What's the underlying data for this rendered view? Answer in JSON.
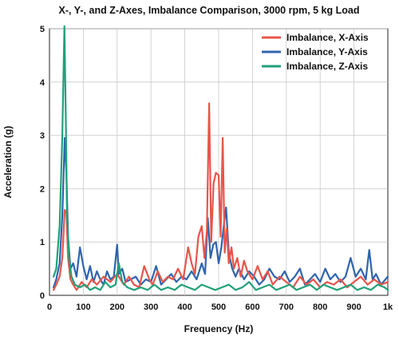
{
  "chart_data": {
    "type": "line",
    "title": "X-, Y-, and Z-Axes, Imbalance Comparison, 3000 rpm, 5 kg Load",
    "xlabel": "Frequency (Hz)",
    "ylabel": "Acceleration (g)",
    "xlim": [
      0,
      1000
    ],
    "ylim": [
      0,
      5
    ],
    "xticks": [
      0,
      100,
      200,
      300,
      400,
      500,
      600,
      700,
      800,
      900,
      1000
    ],
    "xtick_labels": [
      "0",
      "100",
      "200",
      "300",
      "400",
      "500",
      "600",
      "700",
      "800",
      "900",
      "1k"
    ],
    "yticks": [
      0,
      1,
      2,
      3,
      4,
      5
    ],
    "ytick_labels": [
      "0",
      "1",
      "2",
      "3",
      "4",
      "5"
    ],
    "grid": true,
    "legend_position": "top-right",
    "series": [
      {
        "name": "Imbalance, X-Axis",
        "color": "#e8554a",
        "x": [
          12,
          20,
          30,
          38,
          45,
          50,
          55,
          62,
          70,
          80,
          95,
          110,
          125,
          140,
          160,
          180,
          200,
          210,
          220,
          235,
          250,
          265,
          280,
          295,
          305,
          320,
          335,
          350,
          365,
          380,
          395,
          410,
          420,
          430,
          440,
          450,
          458,
          465,
          472,
          478,
          485,
          492,
          500,
          506,
          512,
          518,
          524,
          530,
          538,
          545,
          555,
          565,
          575,
          585,
          600,
          615,
          630,
          645,
          660,
          680,
          700,
          720,
          740,
          760,
          780,
          800,
          820,
          840,
          860,
          880,
          900,
          920,
          940,
          960,
          980,
          1000
        ],
        "y": [
          0.1,
          0.2,
          0.35,
          0.7,
          1.6,
          1.55,
          0.7,
          0.3,
          0.2,
          0.1,
          0.25,
          0.15,
          0.3,
          0.2,
          0.35,
          0.25,
          0.4,
          0.3,
          0.2,
          0.35,
          0.2,
          0.15,
          0.55,
          0.3,
          0.2,
          0.45,
          0.25,
          0.35,
          0.3,
          0.5,
          0.3,
          0.9,
          0.6,
          0.4,
          1.1,
          1.3,
          0.7,
          1.2,
          3.6,
          1.0,
          2.1,
          2.3,
          2.25,
          1.1,
          2.95,
          0.8,
          1.25,
          0.6,
          0.9,
          0.5,
          0.7,
          0.35,
          0.65,
          0.45,
          0.3,
          0.55,
          0.3,
          0.45,
          0.2,
          0.35,
          0.25,
          0.15,
          0.35,
          0.2,
          0.3,
          0.15,
          0.25,
          0.2,
          0.3,
          0.15,
          0.25,
          0.35,
          0.2,
          0.3,
          0.2,
          0.25
        ]
      },
      {
        "name": "Imbalance, Y-Axis",
        "color": "#2f64ad",
        "x": [
          12,
          20,
          30,
          38,
          45,
          50,
          55,
          62,
          70,
          80,
          90,
          100,
          110,
          120,
          130,
          140,
          150,
          160,
          170,
          180,
          190,
          200,
          205,
          215,
          225,
          240,
          255,
          270,
          285,
          300,
          315,
          330,
          345,
          360,
          375,
          390,
          405,
          420,
          435,
          450,
          460,
          468,
          476,
          484,
          492,
          500,
          508,
          516,
          522,
          530,
          540,
          550,
          560,
          575,
          590,
          605,
          620,
          635,
          650,
          665,
          680,
          695,
          710,
          725,
          740,
          755,
          770,
          785,
          800,
          815,
          830,
          845,
          860,
          875,
          890,
          905,
          920,
          935,
          945,
          955,
          965,
          980,
          1000
        ],
        "y": [
          0.15,
          0.3,
          0.6,
          1.5,
          2.95,
          2.3,
          1.1,
          0.5,
          0.6,
          0.35,
          0.9,
          0.55,
          0.3,
          0.55,
          0.25,
          0.45,
          0.3,
          0.2,
          0.45,
          0.3,
          0.35,
          0.95,
          0.4,
          0.5,
          0.25,
          0.3,
          0.35,
          0.2,
          0.3,
          0.25,
          0.55,
          0.2,
          0.3,
          0.4,
          0.25,
          0.35,
          0.3,
          0.45,
          0.3,
          0.6,
          0.4,
          1.45,
          0.7,
          0.95,
          1.0,
          0.6,
          0.9,
          1.35,
          1.65,
          0.8,
          0.5,
          0.35,
          0.5,
          0.3,
          0.45,
          0.35,
          0.2,
          0.3,
          0.5,
          0.35,
          0.3,
          0.45,
          0.25,
          0.35,
          0.5,
          0.2,
          0.3,
          0.4,
          0.25,
          0.5,
          0.3,
          0.4,
          0.25,
          0.35,
          0.7,
          0.35,
          0.5,
          0.3,
          0.85,
          0.3,
          0.4,
          0.2,
          0.35
        ]
      },
      {
        "name": "Imbalance, Z-Axis",
        "color": "#22a07a",
        "x": [
          12,
          20,
          30,
          38,
          44,
          48,
          52,
          58,
          65,
          75,
          90,
          105,
          120,
          135,
          150,
          165,
          180,
          195,
          205,
          215,
          230,
          250,
          270,
          290,
          310,
          330,
          350,
          370,
          390,
          410,
          430,
          450,
          470,
          490,
          510,
          530,
          550,
          570,
          590,
          610,
          630,
          650,
          670,
          690,
          710,
          730,
          750,
          770,
          790,
          810,
          830,
          850,
          870,
          890,
          910,
          930,
          950,
          970,
          990,
          1000
        ],
        "y": [
          0.35,
          0.5,
          1.3,
          3.0,
          5.05,
          3.4,
          1.5,
          0.7,
          0.35,
          0.2,
          0.15,
          0.2,
          0.1,
          0.15,
          0.1,
          0.25,
          0.15,
          0.2,
          0.6,
          0.25,
          0.15,
          0.1,
          0.15,
          0.1,
          0.2,
          0.1,
          0.15,
          0.1,
          0.2,
          0.15,
          0.1,
          0.2,
          0.15,
          0.1,
          0.15,
          0.2,
          0.1,
          0.15,
          0.25,
          0.1,
          0.15,
          0.2,
          0.1,
          0.15,
          0.2,
          0.1,
          0.15,
          0.2,
          0.1,
          0.2,
          0.15,
          0.1,
          0.15,
          0.2,
          0.1,
          0.15,
          0.1,
          0.2,
          0.15,
          0.1
        ]
      }
    ]
  }
}
